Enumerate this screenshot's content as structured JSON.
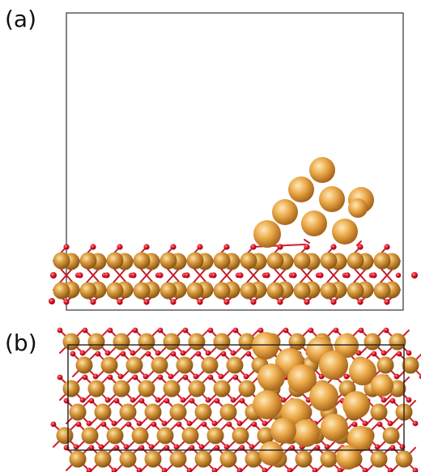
{
  "panels": {
    "a": {
      "label": "(a)"
    },
    "b": {
      "label": "(b)"
    }
  },
  "colors": {
    "copper_atom": "#c8862c",
    "copper_highlight": "#f4cf86",
    "cluster_atom": "#e9a53c",
    "oxygen_atom": "#d8152a",
    "cell_border": "#333333"
  },
  "atom_types": [
    "copper-atom",
    "oxygen-atom"
  ]
}
